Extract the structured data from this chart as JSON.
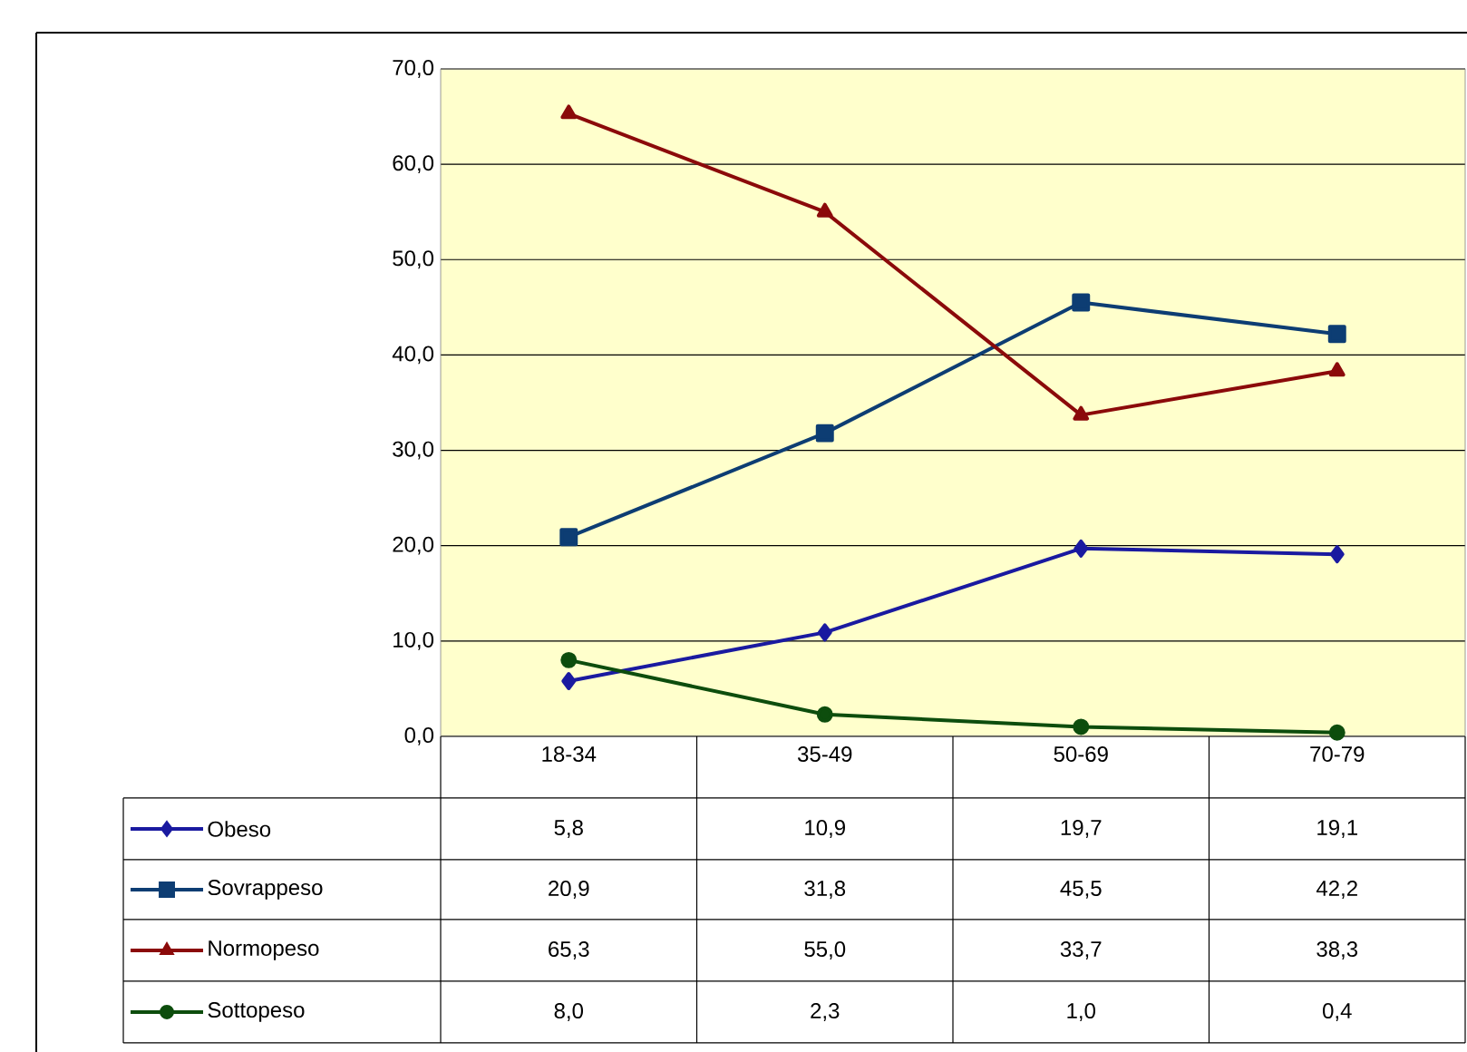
{
  "chart_data": {
    "type": "line",
    "categories": [
      "18-34",
      "35-49",
      "50-69",
      "70-79"
    ],
    "series": [
      {
        "name": "Obeso",
        "color": "#1a1aa0",
        "marker": "diamond",
        "values": [
          5.8,
          10.9,
          19.7,
          19.1
        ],
        "value_labels": [
          "5,8",
          "10,9",
          "19,7",
          "19,1"
        ]
      },
      {
        "name": "Sovrappeso",
        "color": "#0d3d73",
        "marker": "square",
        "values": [
          20.9,
          31.8,
          45.5,
          42.2
        ],
        "value_labels": [
          "20,9",
          "31,8",
          "45,5",
          "42,2"
        ]
      },
      {
        "name": "Normopeso",
        "color": "#8b0a0a",
        "marker": "triangle",
        "values": [
          65.3,
          55.0,
          33.7,
          38.3
        ],
        "value_labels": [
          "65,3",
          "55,0",
          "33,7",
          "38,3"
        ]
      },
      {
        "name": "Sottopeso",
        "color": "#0d4d0d",
        "marker": "circle",
        "values": [
          8.0,
          2.3,
          1.0,
          0.4
        ],
        "value_labels": [
          "8,0",
          "2,3",
          "1,0",
          "0,4"
        ]
      }
    ],
    "ylim": [
      0,
      70
    ],
    "yticks": [
      {
        "value": 0,
        "label": "0,0"
      },
      {
        "value": 10,
        "label": "10,0"
      },
      {
        "value": 20,
        "label": "20,0"
      },
      {
        "value": 30,
        "label": "30,0"
      },
      {
        "value": 40,
        "label": "40,0"
      },
      {
        "value": 50,
        "label": "50,0"
      },
      {
        "value": 60,
        "label": "60,0"
      },
      {
        "value": 70,
        "label": "70,0"
      }
    ],
    "grid": "y",
    "legend": "bottom"
  }
}
